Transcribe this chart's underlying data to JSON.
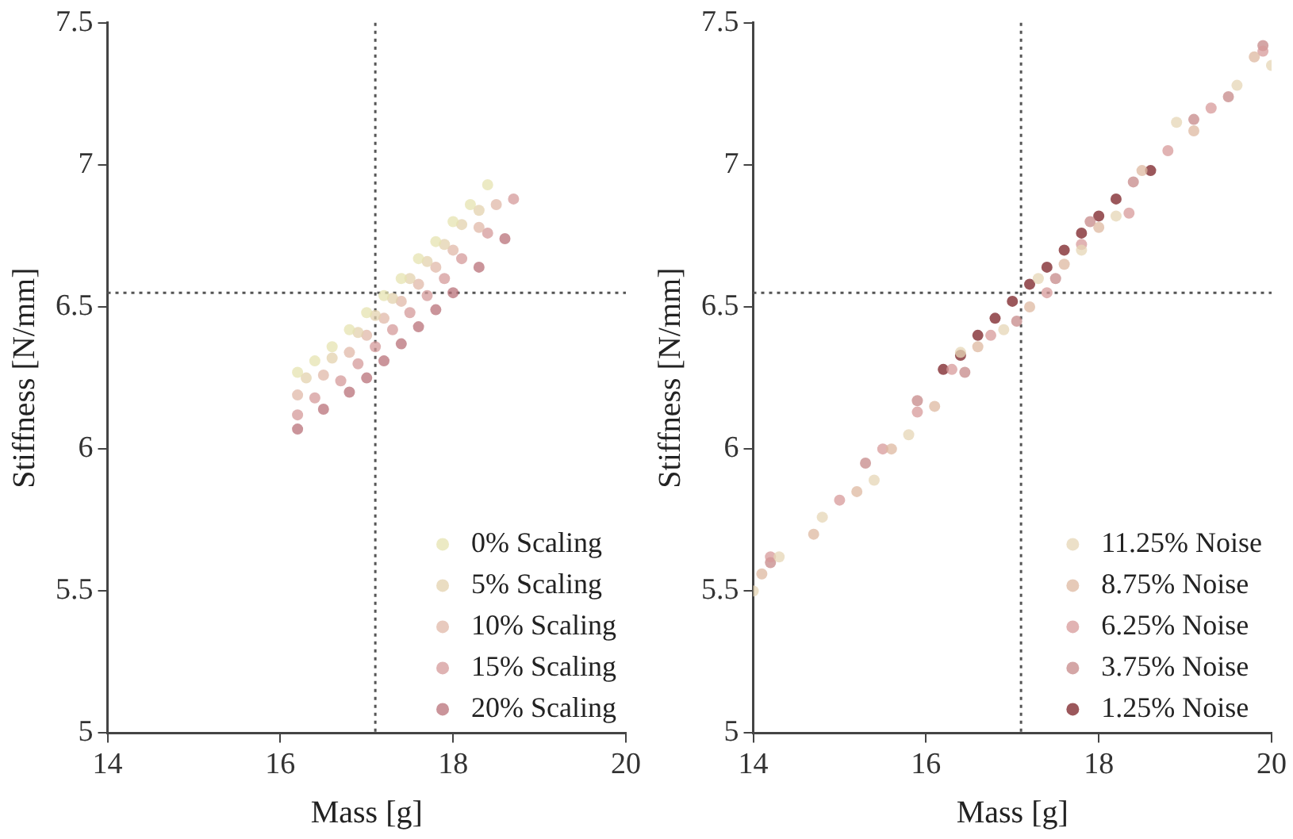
{
  "chart_data": [
    {
      "type": "scatter",
      "xlabel": "Mass [g]",
      "ylabel": "Stiffness [N/mm]",
      "xlim": [
        14,
        20
      ],
      "ylim": [
        5,
        7.5
      ],
      "xticks": [
        14,
        16,
        18,
        20
      ],
      "yticks": [
        5,
        5.5,
        6,
        6.5,
        7,
        7.5
      ],
      "grid": false,
      "legend": "bottom right",
      "marker": "circle",
      "ref_lines": [
        {
          "axis": "x",
          "value": 17.1,
          "line_style": "dotted",
          "color": "#555555"
        },
        {
          "axis": "y",
          "value": 6.55,
          "line_style": "dotted",
          "color": "#555555"
        }
      ],
      "series": [
        {
          "name": "0% Scaling",
          "color": "#e6e3b0",
          "x": [
            16.2,
            16.4,
            16.6,
            16.8,
            17.0,
            17.2,
            17.4,
            17.6,
            17.8,
            18.0,
            18.2,
            18.4
          ],
          "values": [
            6.27,
            6.31,
            6.36,
            6.42,
            6.48,
            6.54,
            6.6,
            6.67,
            6.73,
            6.8,
            6.86,
            6.93
          ]
        },
        {
          "name": "5% Scaling",
          "color": "#e3d2ae",
          "x": [
            16.3,
            16.6,
            16.9,
            17.1,
            17.3,
            17.5,
            17.7,
            17.9,
            18.1,
            18.3
          ],
          "values": [
            6.25,
            6.32,
            6.41,
            6.47,
            6.53,
            6.6,
            6.66,
            6.72,
            6.79,
            6.84
          ]
        },
        {
          "name": "10% Scaling",
          "color": "#e0b8a8",
          "x": [
            16.2,
            16.5,
            16.8,
            17.0,
            17.2,
            17.4,
            17.6,
            17.8,
            18.0,
            18.3,
            18.5
          ],
          "values": [
            6.19,
            6.26,
            6.34,
            6.4,
            6.46,
            6.52,
            6.58,
            6.64,
            6.7,
            6.78,
            6.86
          ]
        },
        {
          "name": "15% Scaling",
          "color": "#d49a9a",
          "x": [
            16.2,
            16.4,
            16.7,
            16.9,
            17.1,
            17.3,
            17.5,
            17.7,
            17.9,
            18.1,
            18.4,
            18.7
          ],
          "values": [
            6.12,
            6.18,
            6.24,
            6.3,
            6.36,
            6.42,
            6.48,
            6.54,
            6.6,
            6.67,
            6.76,
            6.88
          ]
        },
        {
          "name": "20% Scaling",
          "color": "#b87078",
          "x": [
            16.2,
            16.5,
            16.8,
            17.0,
            17.2,
            17.4,
            17.6,
            17.8,
            18.0,
            18.3,
            18.6
          ],
          "values": [
            6.07,
            6.14,
            6.2,
            6.25,
            6.31,
            6.37,
            6.43,
            6.49,
            6.55,
            6.64,
            6.74
          ]
        }
      ]
    },
    {
      "type": "scatter",
      "xlabel": "Mass [g]",
      "ylabel": "Stiffness [N/mm]",
      "xlim": [
        14,
        20
      ],
      "ylim": [
        5,
        7.5
      ],
      "xticks": [
        14,
        16,
        18,
        20
      ],
      "yticks": [
        5,
        5.5,
        6,
        6.5,
        7,
        7.5
      ],
      "grid": false,
      "legend": "bottom right",
      "marker": "circle",
      "ref_lines": [
        {
          "axis": "x",
          "value": 17.1,
          "line_style": "dotted",
          "color": "#555555"
        },
        {
          "axis": "y",
          "value": 6.55,
          "line_style": "dotted",
          "color": "#555555"
        }
      ],
      "series": [
        {
          "name": "11.25% Noise",
          "color": "#e5d5b5",
          "x": [
            14.0,
            14.3,
            14.8,
            15.4,
            15.8,
            16.4,
            16.9,
            17.3,
            17.8,
            18.2,
            18.9,
            19.6,
            20.0
          ],
          "values": [
            5.5,
            5.62,
            5.76,
            5.89,
            6.05,
            6.34,
            6.42,
            6.6,
            6.7,
            6.82,
            7.15,
            7.28,
            7.35
          ]
        },
        {
          "name": "8.75% Noise",
          "color": "#ddb8a0",
          "x": [
            14.1,
            14.7,
            15.2,
            15.6,
            16.1,
            16.6,
            17.2,
            17.6,
            18.0,
            18.5,
            19.1,
            19.8
          ],
          "values": [
            5.56,
            5.7,
            5.85,
            6.0,
            6.15,
            6.36,
            6.5,
            6.65,
            6.78,
            6.98,
            7.12,
            7.38
          ]
        },
        {
          "name": "6.25% Noise",
          "color": "#d7999a",
          "x": [
            14.2,
            15.0,
            15.5,
            15.9,
            16.3,
            16.75,
            17.4,
            17.8,
            18.35,
            18.8,
            19.3,
            19.9
          ],
          "values": [
            5.62,
            5.82,
            6.0,
            6.13,
            6.28,
            6.4,
            6.55,
            6.72,
            6.83,
            7.05,
            7.2,
            7.4
          ]
        },
        {
          "name": "3.75% Noise",
          "color": "#c58888",
          "x": [
            14.2,
            15.3,
            15.9,
            16.45,
            17.05,
            17.5,
            17.9,
            18.4,
            19.1,
            19.5,
            19.9
          ],
          "values": [
            5.6,
            5.95,
            6.17,
            6.27,
            6.45,
            6.6,
            6.8,
            6.94,
            7.16,
            7.24,
            7.42
          ]
        },
        {
          "name": "1.25% Noise",
          "color": "#7a1f24",
          "x": [
            16.2,
            16.4,
            16.6,
            16.8,
            17.0,
            17.2,
            17.4,
            17.6,
            17.8,
            18.0,
            18.2,
            18.6
          ],
          "values": [
            6.28,
            6.33,
            6.4,
            6.46,
            6.52,
            6.58,
            6.64,
            6.7,
            6.76,
            6.82,
            6.88,
            6.98
          ]
        }
      ]
    }
  ]
}
